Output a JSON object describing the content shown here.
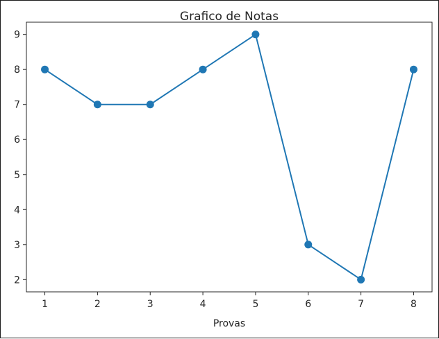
{
  "chart_data": {
    "type": "line",
    "title": "Grafico de Notas",
    "xlabel": "Provas",
    "ylabel": "",
    "x": [
      1,
      2,
      3,
      4,
      5,
      6,
      7,
      8
    ],
    "y": [
      8,
      7,
      7,
      8,
      9,
      3,
      2,
      8
    ],
    "xticks": [
      "1",
      "2",
      "3",
      "4",
      "5",
      "6",
      "7",
      "8"
    ],
    "yticks": [
      "2",
      "3",
      "4",
      "5",
      "6",
      "7",
      "8",
      "9"
    ],
    "xlim": [
      0.65,
      8.35
    ],
    "ylim": [
      1.65,
      9.35
    ],
    "marker": "circle",
    "color": "#1f77b4",
    "grid": false,
    "legend": "none"
  }
}
